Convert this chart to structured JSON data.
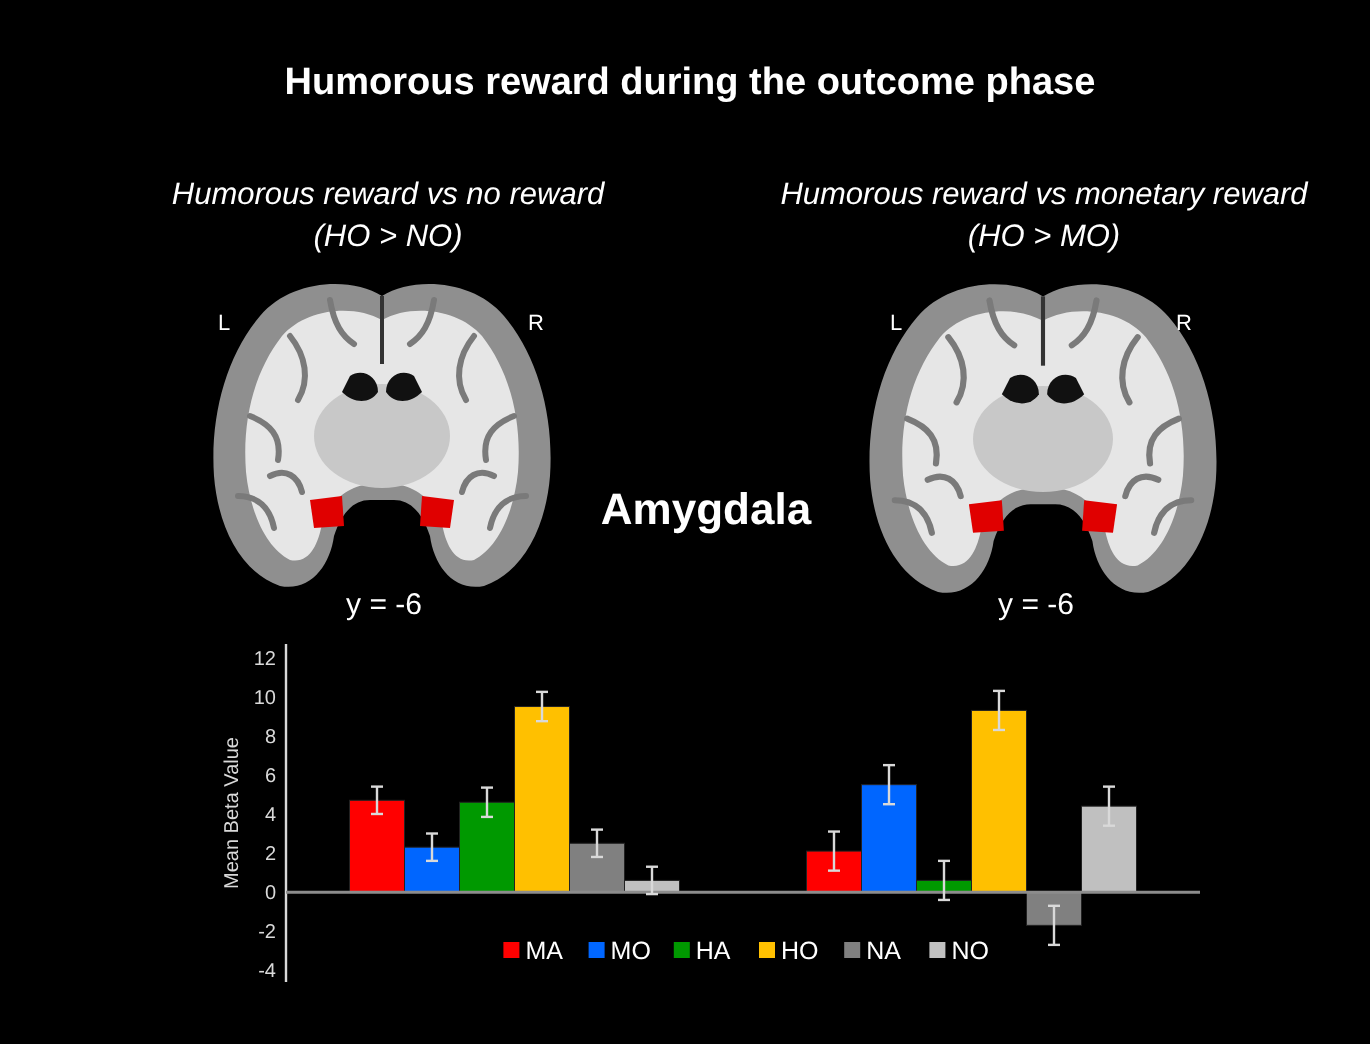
{
  "chart_data": {
    "type": "bar",
    "title": "Humorous reward during the outcome phase",
    "ylabel": "Mean Beta Value",
    "categories": [
      null,
      null
    ],
    "series": [
      {
        "name": "MA",
        "color": "#ff0000",
        "values": [
          4.7,
          2.1
        ],
        "errors": [
          0.7,
          1.0
        ]
      },
      {
        "name": "MO",
        "color": "#0066ff",
        "values": [
          2.3,
          5.5
        ],
        "errors": [
          0.7,
          1.0
        ]
      },
      {
        "name": "HA",
        "color": "#009900",
        "values": [
          4.6,
          0.6
        ],
        "errors": [
          0.75,
          1.0
        ]
      },
      {
        "name": "HO",
        "color": "#ffc000",
        "values": [
          9.5,
          9.3
        ],
        "errors": [
          0.75,
          1.0
        ]
      },
      {
        "name": "NA",
        "color": "#808080",
        "values": [
          2.5,
          -1.7
        ],
        "errors": [
          0.7,
          1.0
        ]
      },
      {
        "name": "NO",
        "color": "#c0c0c0",
        "values": [
          0.6,
          4.4
        ],
        "errors": [
          0.7,
          1.0
        ]
      }
    ],
    "ylim": [
      -4.6,
      12.7
    ],
    "yticks": [
      -4,
      -2,
      0,
      2,
      4,
      6,
      8,
      10,
      12
    ],
    "legend": "bottom",
    "annotations": [
      "Humorous reward vs no reward",
      "(HO > NO)",
      "Humorous reward vs monetary reward",
      "(HO > MO)",
      "L",
      "R",
      "L",
      "R",
      "Amygdala",
      "y = -6",
      "y = -6"
    ]
  }
}
